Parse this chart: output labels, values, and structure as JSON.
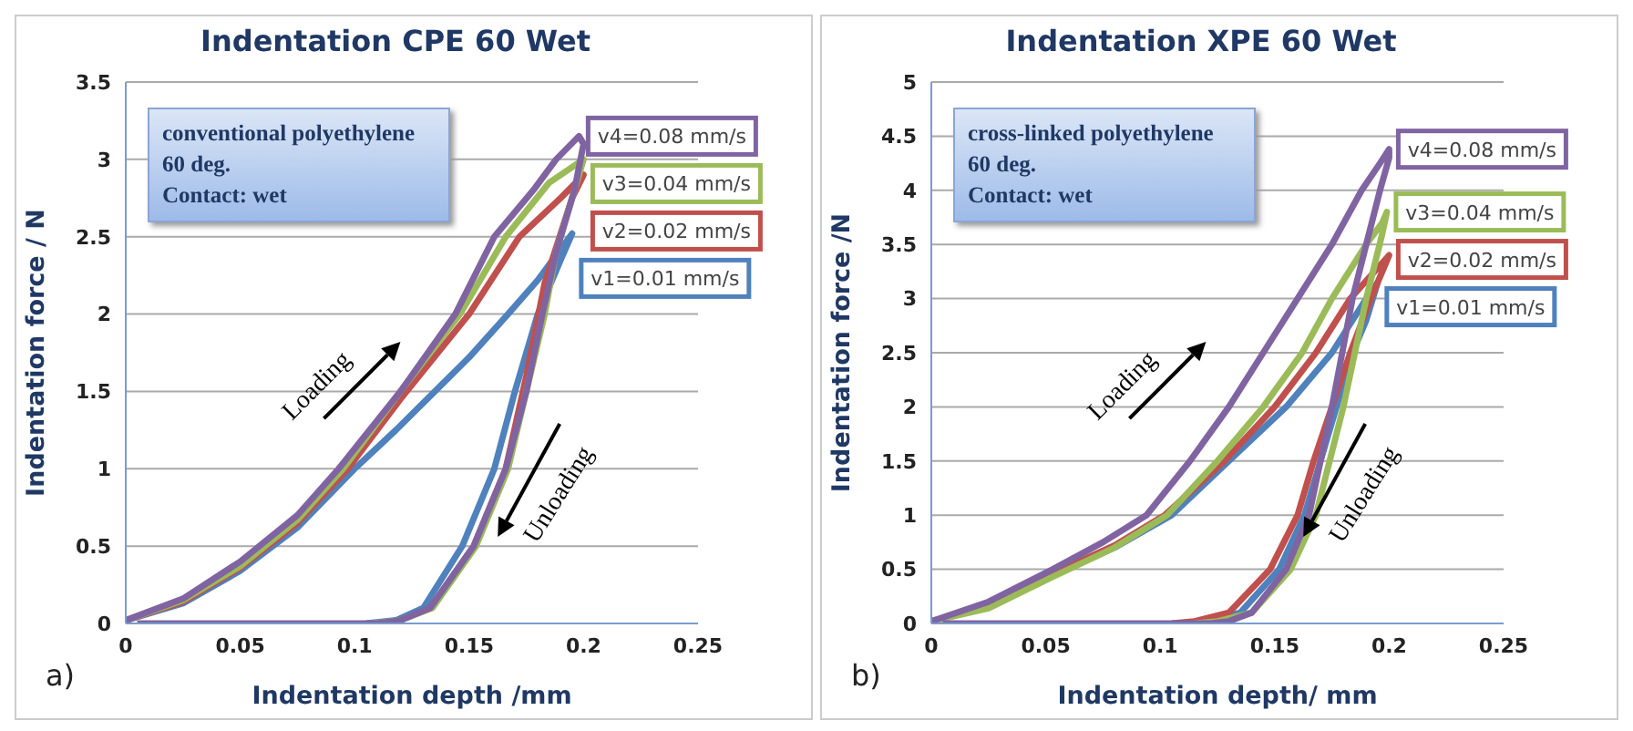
{
  "chart_data": [
    {
      "type": "line",
      "title": "Indentation CPE 60 Wet",
      "xlabel": "Indentation depth  /mm",
      "ylabel": "Indentation force / N",
      "xlim": [
        0,
        0.25
      ],
      "xticks": [
        0,
        0.05,
        0.1,
        0.15,
        0.2,
        0.25
      ],
      "ylim": [
        0,
        3.5
      ],
      "yticks": [
        0,
        0.5,
        1,
        1.5,
        2,
        2.5,
        3,
        3.5
      ],
      "grid": "y",
      "marker": "none",
      "line_style": "solid",
      "annotations": [
        "conventional polyethylene",
        "60 deg.",
        "Contact: wet",
        "Loading",
        "Unloading",
        "a)"
      ],
      "series": [
        {
          "name": "v1=0.01 mm/s",
          "color": "#4f81bd",
          "x": [
            0,
            0.025,
            0.05,
            0.075,
            0.1,
            0.118,
            0.135,
            0.15,
            0.167,
            0.18,
            0.195,
            0.19,
            0.18,
            0.17,
            0.161,
            0.147,
            0.13,
            0.118,
            0.105
          ],
          "values": [
            0.02,
            0.13,
            0.34,
            0.62,
            1.0,
            1.25,
            1.5,
            1.72,
            2.0,
            2.22,
            2.52,
            2.35,
            2.0,
            1.5,
            1.0,
            0.5,
            0.1,
            0.02,
            0
          ]
        },
        {
          "name": "v2=0.02 mm/s",
          "color": "#c0504d",
          "x": [
            0,
            0.025,
            0.05,
            0.075,
            0.097,
            0.12,
            0.15,
            0.172,
            0.19,
            0.2,
            0.195,
            0.183,
            0.175,
            0.166,
            0.152,
            0.133
          ],
          "values": [
            0.02,
            0.14,
            0.36,
            0.65,
            1.0,
            1.45,
            2.0,
            2.5,
            2.75,
            2.9,
            2.75,
            2.2,
            1.6,
            1.0,
            0.5,
            0.1
          ]
        },
        {
          "name": "v3=0.04 mm/s",
          "color": "#9bbb59",
          "x": [
            0,
            0.025,
            0.05,
            0.075,
            0.095,
            0.12,
            0.146,
            0.166,
            0.185,
            0.2,
            0.197,
            0.188,
            0.183,
            0.175,
            0.167,
            0.153,
            0.134,
            0.12,
            0.108
          ],
          "values": [
            0.02,
            0.15,
            0.37,
            0.67,
            1.0,
            1.5,
            2.0,
            2.5,
            2.85,
            3.0,
            2.85,
            2.4,
            2.0,
            1.5,
            1.0,
            0.5,
            0.1,
            0.02,
            0
          ]
        },
        {
          "name": "v4=0.08 mm/s",
          "color": "#8064a2",
          "x": [
            0,
            0.025,
            0.05,
            0.075,
            0.093,
            0.12,
            0.144,
            0.161,
            0.178,
            0.188,
            0.198,
            0.2,
            0.196,
            0.188,
            0.182,
            0.175,
            0.166,
            0.152,
            0.133,
            0.12,
            0.11,
            0.06,
            0.005
          ],
          "values": [
            0.02,
            0.16,
            0.4,
            0.7,
            1.0,
            1.5,
            2.0,
            2.5,
            2.8,
            3.0,
            3.15,
            3.1,
            2.8,
            2.4,
            2.0,
            1.5,
            1.0,
            0.5,
            0.1,
            0.02,
            0,
            0,
            0
          ]
        }
      ]
    },
    {
      "type": "line",
      "title": "Indentation XPE 60 Wet",
      "xlabel": "Indentation depth/ mm",
      "ylabel": "Indentation force /N",
      "xlim": [
        0,
        0.25
      ],
      "xticks": [
        0,
        0.05,
        0.1,
        0.15,
        0.2,
        0.25
      ],
      "ylim": [
        0,
        5
      ],
      "yticks": [
        0,
        0.5,
        1,
        1.5,
        2,
        2.5,
        3,
        3.5,
        4,
        4.5,
        5
      ],
      "grid": "y",
      "marker": "none",
      "line_style": "solid",
      "annotations": [
        "cross-linked polyethylene",
        "60 deg.",
        "Contact: wet",
        "Loading",
        "Unloading",
        "b)"
      ],
      "series": [
        {
          "name": "v1=0.01 mm/s",
          "color": "#4f81bd",
          "x": [
            0,
            0.025,
            0.053,
            0.08,
            0.105,
            0.13,
            0.155,
            0.175,
            0.19,
            0.195,
            0.19,
            0.184,
            0.177,
            0.17,
            0.163,
            0.152,
            0.135,
            0.12,
            0.11
          ],
          "values": [
            0.02,
            0.15,
            0.45,
            0.7,
            1.0,
            1.5,
            2.0,
            2.5,
            3.0,
            3.15,
            2.8,
            2.5,
            2.0,
            1.5,
            1.0,
            0.5,
            0.1,
            0.02,
            0
          ]
        },
        {
          "name": "v2=0.02 mm/s",
          "color": "#c0504d",
          "x": [
            0,
            0.025,
            0.053,
            0.08,
            0.102,
            0.128,
            0.15,
            0.168,
            0.183,
            0.2,
            0.192,
            0.183,
            0.175,
            0.167,
            0.16,
            0.148,
            0.13,
            0.115,
            0.105
          ],
          "values": [
            0.02,
            0.16,
            0.46,
            0.72,
            1.0,
            1.5,
            2.0,
            2.5,
            3.0,
            3.4,
            3.0,
            2.5,
            2.0,
            1.5,
            1.0,
            0.5,
            0.1,
            0.02,
            0
          ]
        },
        {
          "name": "v3=0.04 mm/s",
          "color": "#9bbb59",
          "x": [
            0,
            0.025,
            0.053,
            0.08,
            0.103,
            0.125,
            0.145,
            0.162,
            0.175,
            0.19,
            0.197,
            0.199,
            0.197,
            0.19,
            0.185,
            0.18,
            0.174,
            0.168,
            0.157,
            0.14,
            0.125,
            0.115
          ],
          "values": [
            0.02,
            0.14,
            0.43,
            0.7,
            1.0,
            1.5,
            2.0,
            2.5,
            3.0,
            3.5,
            3.7,
            3.8,
            3.6,
            3.0,
            2.5,
            2.0,
            1.5,
            1.0,
            0.5,
            0.1,
            0.02,
            0
          ]
        },
        {
          "name": "v4=0.08 mm/s",
          "color": "#8064a2",
          "x": [
            0,
            0.025,
            0.053,
            0.075,
            0.094,
            0.113,
            0.13,
            0.145,
            0.16,
            0.175,
            0.188,
            0.196,
            0.2,
            0.2,
            0.196,
            0.19,
            0.184,
            0.175,
            0.17,
            0.165,
            0.155,
            0.14,
            0.13,
            0.122,
            0.06,
            0.005
          ],
          "values": [
            0.02,
            0.2,
            0.5,
            0.75,
            1.0,
            1.5,
            2.0,
            2.5,
            3.0,
            3.5,
            4.0,
            4.25,
            4.38,
            4.3,
            4.0,
            3.5,
            3.0,
            2.0,
            1.5,
            1.0,
            0.5,
            0.1,
            0.02,
            0,
            0,
            0
          ]
        }
      ]
    }
  ]
}
